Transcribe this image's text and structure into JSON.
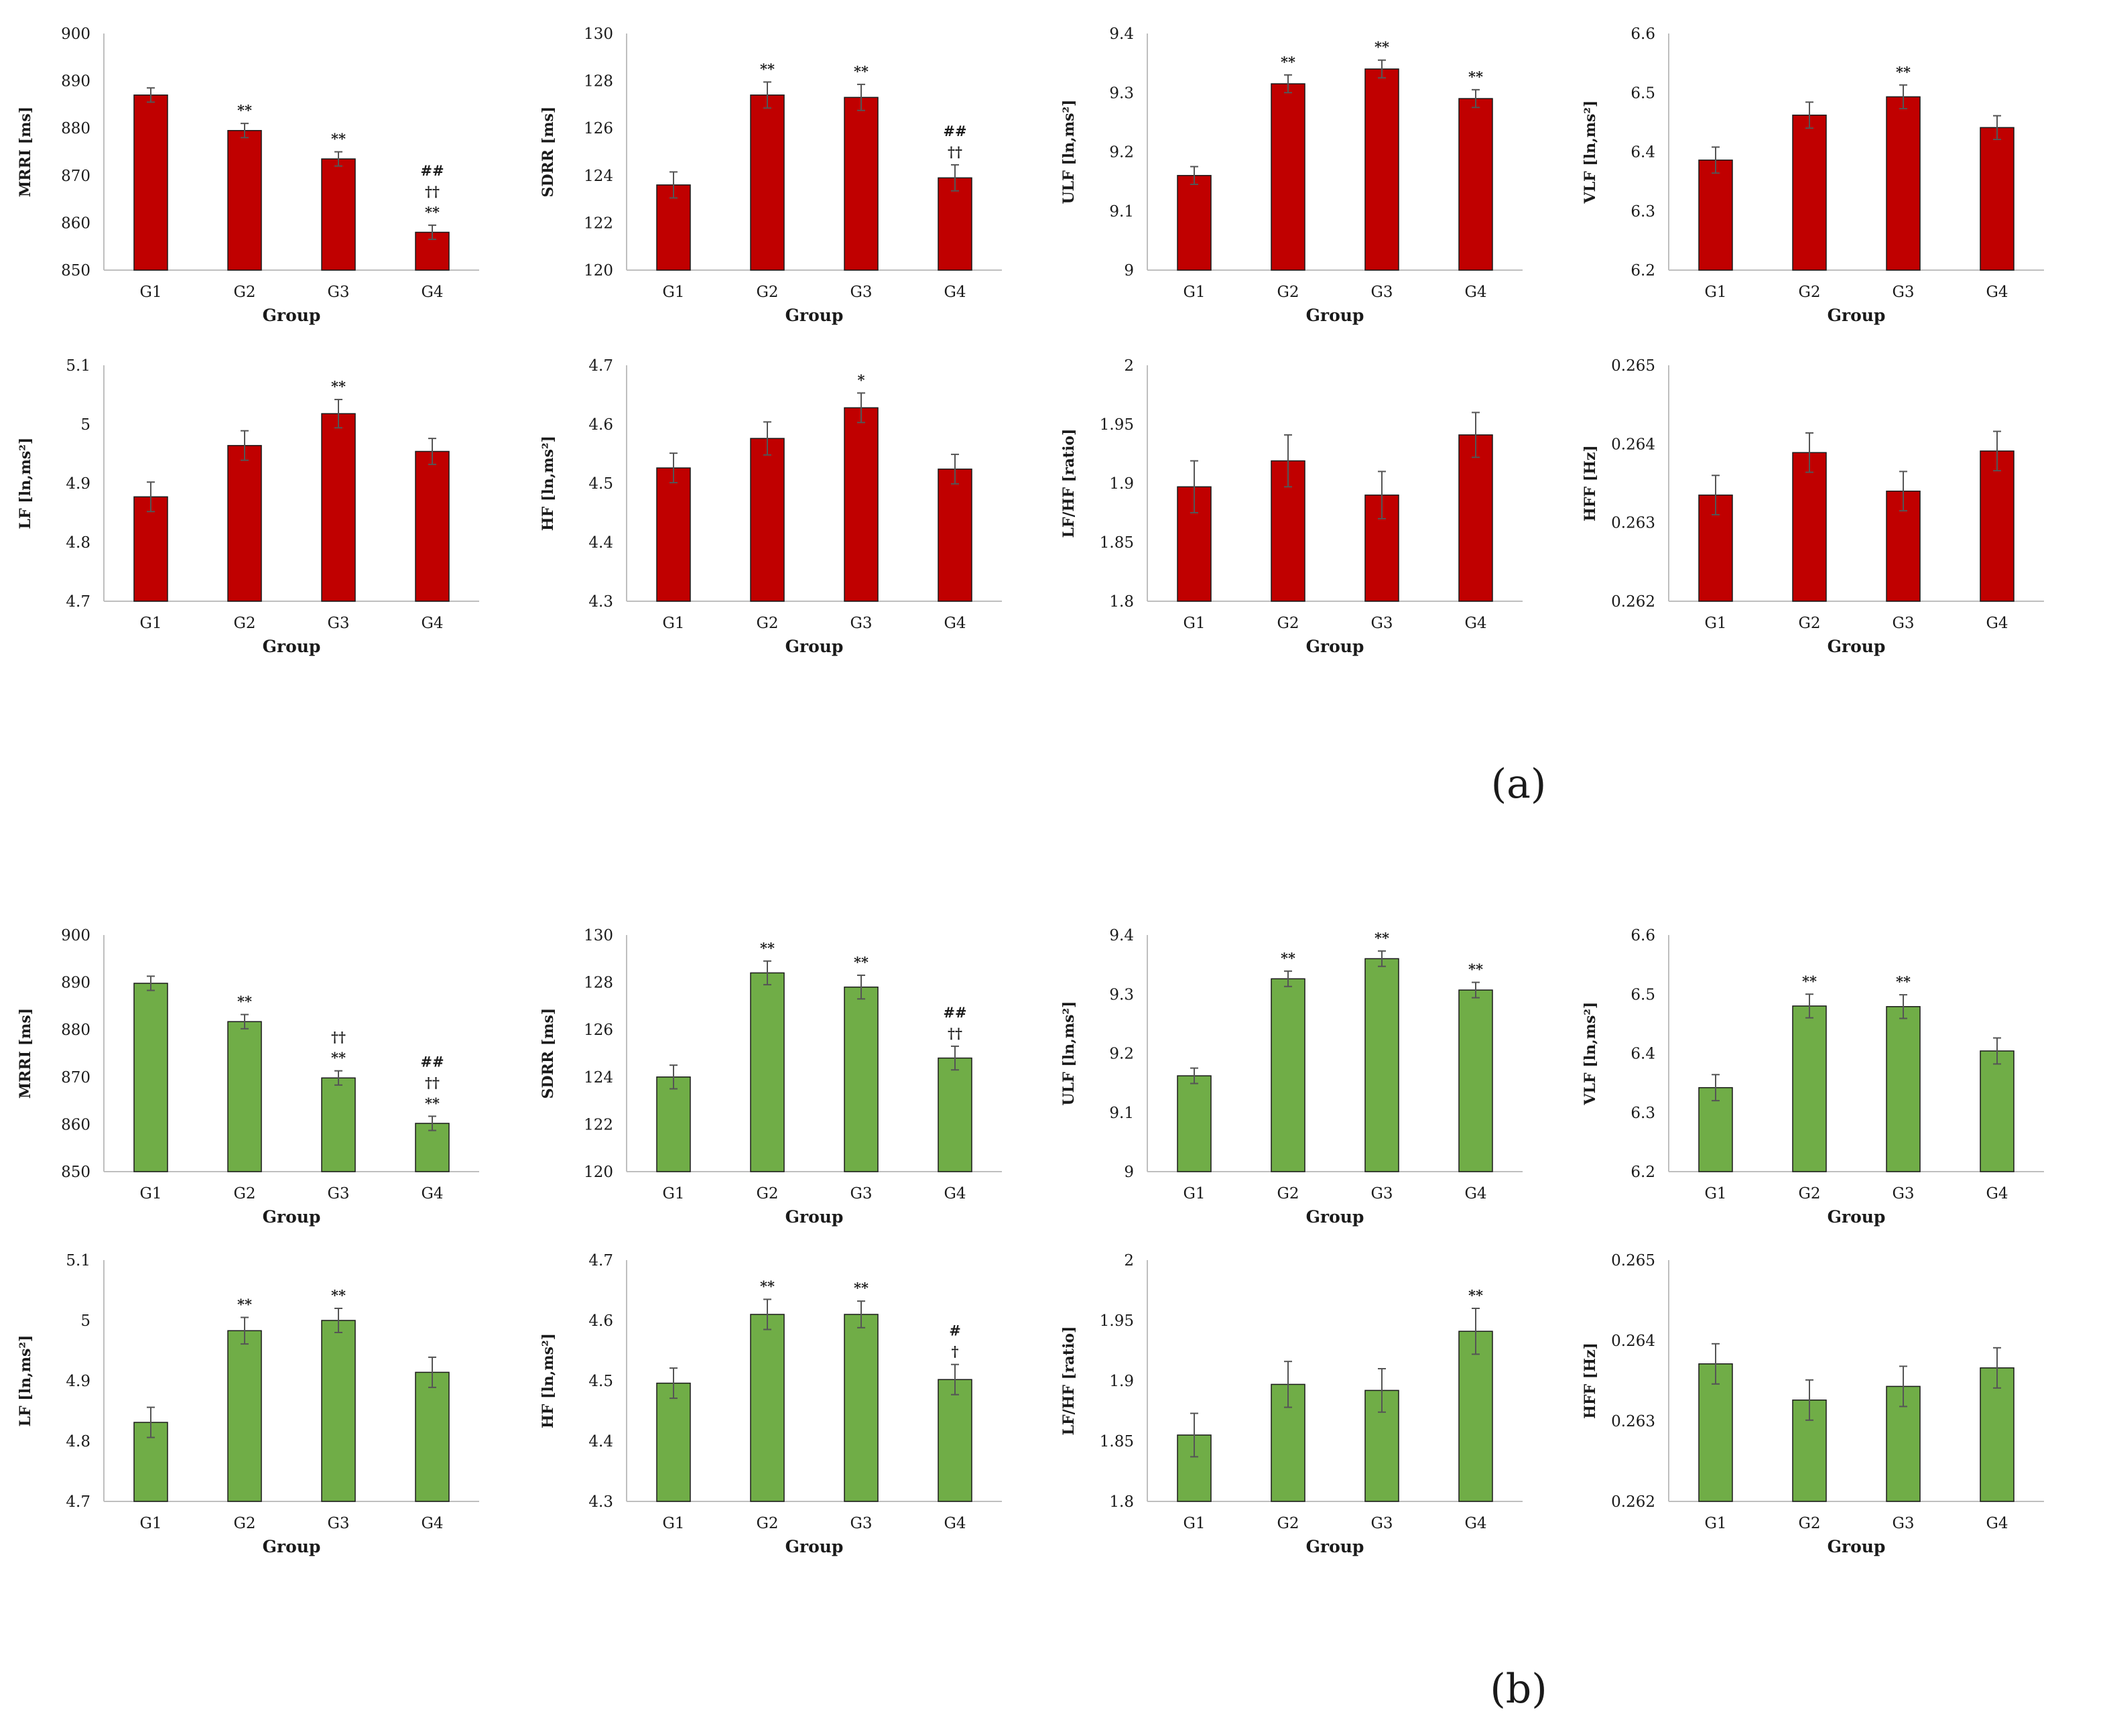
{
  "figure": {
    "panel_labels": [
      "(a)",
      "(b)"
    ]
  },
  "chart_data": [
    {
      "type": "bar",
      "figure_panel": "(a)",
      "color": "#c00000",
      "title": "",
      "xlabel": "Group",
      "ylabel": "MRRI [ms]",
      "categories": [
        "G1",
        "G2",
        "G3",
        "G4"
      ],
      "values": [
        887,
        879.5,
        873.5,
        858
      ],
      "errors": [
        1.5,
        1.5,
        1.5,
        1.5
      ],
      "ylim": [
        850,
        900
      ],
      "yticks": [
        "850",
        "860",
        "870",
        "880",
        "890",
        "900"
      ],
      "annotations": [
        "",
        "**",
        "**",
        "##\n††\n**"
      ]
    },
    {
      "type": "bar",
      "figure_panel": "(a)",
      "color": "#c00000",
      "title": "",
      "xlabel": "Group",
      "ylabel": "SDRR [ms]",
      "categories": [
        "G1",
        "G2",
        "G3",
        "G4"
      ],
      "values": [
        123.6,
        127.4,
        127.3,
        123.9
      ],
      "errors": [
        0.55,
        0.55,
        0.55,
        0.55
      ],
      "ylim": [
        120,
        130
      ],
      "yticks": [
        "120",
        "122",
        "124",
        "126",
        "128",
        "130"
      ],
      "annotations": [
        "",
        "**",
        "**",
        "##\n††"
      ]
    },
    {
      "type": "bar",
      "figure_panel": "(a)",
      "color": "#c00000",
      "title": "",
      "xlabel": "Group",
      "ylabel": "ULF [ln,ms²]",
      "categories": [
        "G1",
        "G2",
        "G3",
        "G4"
      ],
      "values": [
        9.16,
        9.315,
        9.34,
        9.29
      ],
      "errors": [
        0.015,
        0.015,
        0.015,
        0.015
      ],
      "ylim": [
        9,
        9.4
      ],
      "yticks": [
        "9",
        "9.1",
        "9.2",
        "9.3",
        "9.4"
      ],
      "annotations": [
        "",
        "**",
        "**",
        "**"
      ]
    },
    {
      "type": "bar",
      "figure_panel": "(a)",
      "color": "#c00000",
      "title": "",
      "xlabel": "Group",
      "ylabel": "VLF [ln,ms²]",
      "categories": [
        "G1",
        "G2",
        "G3",
        "G4"
      ],
      "values": [
        6.386,
        6.462,
        6.493,
        6.441
      ],
      "errors": [
        0.022,
        0.022,
        0.02,
        0.02
      ],
      "ylim": [
        6.2,
        6.6
      ],
      "yticks": [
        "6.2",
        "6.3",
        "6.4",
        "6.5",
        "6.6"
      ],
      "annotations": [
        "",
        "",
        "**",
        ""
      ]
    },
    {
      "type": "bar",
      "figure_panel": "(a)",
      "color": "#c00000",
      "title": "",
      "xlabel": "Group",
      "ylabel": "LF [ln,ms²]",
      "categories": [
        "G1",
        "G2",
        "G3",
        "G4"
      ],
      "values": [
        4.877,
        4.964,
        5.018,
        4.954
      ],
      "errors": [
        0.025,
        0.025,
        0.024,
        0.022
      ],
      "ylim": [
        4.7,
        5.1
      ],
      "yticks": [
        "4.7",
        "4.8",
        "4.9",
        "5",
        "5.1"
      ],
      "annotations": [
        "",
        "",
        "**",
        ""
      ]
    },
    {
      "type": "bar",
      "figure_panel": "(a)",
      "color": "#c00000",
      "title": "",
      "xlabel": "Group",
      "ylabel": "HF [ln,ms²]",
      "categories": [
        "G1",
        "G2",
        "G3",
        "G4"
      ],
      "values": [
        4.526,
        4.576,
        4.628,
        4.524
      ],
      "errors": [
        0.025,
        0.028,
        0.025,
        0.025
      ],
      "ylim": [
        4.3,
        4.7
      ],
      "yticks": [
        "4.3",
        "4.4",
        "4.5",
        "4.6",
        "4.7"
      ],
      "annotations": [
        "",
        "",
        "*",
        ""
      ]
    },
    {
      "type": "bar",
      "figure_panel": "(a)",
      "color": "#c00000",
      "title": "",
      "xlabel": "Group",
      "ylabel": "LF/HF [ratio]",
      "categories": [
        "G1",
        "G2",
        "G3",
        "G4"
      ],
      "values": [
        1.897,
        1.919,
        1.89,
        1.941
      ],
      "errors": [
        0.022,
        0.022,
        0.02,
        0.019
      ],
      "ylim": [
        1.8,
        2
      ],
      "yticks": [
        "1.8",
        "1.85",
        "1.9",
        "1.95",
        "2"
      ],
      "annotations": [
        "",
        "",
        "",
        ""
      ]
    },
    {
      "type": "bar",
      "figure_panel": "(a)",
      "color": "#c00000",
      "title": "",
      "xlabel": "Group",
      "ylabel": "HFF [Hz]",
      "categories": [
        "G1",
        "G2",
        "G3",
        "G4"
      ],
      "values": [
        0.26335,
        0.26389,
        0.2634,
        0.26391
      ],
      "errors": [
        0.00025,
        0.00025,
        0.00025,
        0.00025
      ],
      "ylim": [
        0.262,
        0.265
      ],
      "yticks": [
        "0.262",
        "0.263",
        "0.264",
        "0.265"
      ],
      "annotations": [
        "",
        "",
        "",
        ""
      ]
    },
    {
      "type": "bar",
      "figure_panel": "(b)",
      "color": "#70ad47",
      "title": "",
      "xlabel": "Group",
      "ylabel": "MRRI [ms]",
      "categories": [
        "G1",
        "G2",
        "G3",
        "G4"
      ],
      "values": [
        889.8,
        881.7,
        869.8,
        860.2
      ],
      "errors": [
        1.5,
        1.5,
        1.5,
        1.5
      ],
      "ylim": [
        850,
        900
      ],
      "yticks": [
        "850",
        "860",
        "870",
        "880",
        "890",
        "900"
      ],
      "annotations": [
        "",
        "**",
        "††\n**",
        "##\n††\n**"
      ]
    },
    {
      "type": "bar",
      "figure_panel": "(b)",
      "color": "#70ad47",
      "title": "",
      "xlabel": "Group",
      "ylabel": "SDRR [ms]",
      "categories": [
        "G1",
        "G2",
        "G3",
        "G4"
      ],
      "values": [
        124,
        128.4,
        127.8,
        124.8
      ],
      "errors": [
        0.5,
        0.5,
        0.5,
        0.5
      ],
      "ylim": [
        120,
        130
      ],
      "yticks": [
        "120",
        "122",
        "124",
        "126",
        "128",
        "130"
      ],
      "annotations": [
        "",
        "**",
        "**",
        "##\n††"
      ]
    },
    {
      "type": "bar",
      "figure_panel": "(b)",
      "color": "#70ad47",
      "title": "",
      "xlabel": "Group",
      "ylabel": "ULF [ln,ms²]",
      "categories": [
        "G1",
        "G2",
        "G3",
        "G4"
      ],
      "values": [
        9.162,
        9.326,
        9.36,
        9.307
      ],
      "errors": [
        0.013,
        0.013,
        0.013,
        0.013
      ],
      "ylim": [
        9,
        9.4
      ],
      "yticks": [
        "9",
        "9.1",
        "9.2",
        "9.3",
        "9.4"
      ],
      "annotations": [
        "",
        "**",
        "**",
        "**"
      ]
    },
    {
      "type": "bar",
      "figure_panel": "(b)",
      "color": "#70ad47",
      "title": "",
      "xlabel": "Group",
      "ylabel": "VLF [ln,ms²]",
      "categories": [
        "G1",
        "G2",
        "G3",
        "G4"
      ],
      "values": [
        6.342,
        6.48,
        6.479,
        6.404
      ],
      "errors": [
        0.022,
        0.02,
        0.02,
        0.022
      ],
      "ylim": [
        6.2,
        6.6
      ],
      "yticks": [
        "6.2",
        "6.3",
        "6.4",
        "6.5",
        "6.6"
      ],
      "annotations": [
        "",
        "**",
        "**",
        ""
      ]
    },
    {
      "type": "bar",
      "figure_panel": "(b)",
      "color": "#70ad47",
      "title": "",
      "xlabel": "Group",
      "ylabel": "LF [ln,ms²]",
      "categories": [
        "G1",
        "G2",
        "G3",
        "G4"
      ],
      "values": [
        4.831,
        4.983,
        5,
        4.914
      ],
      "errors": [
        0.025,
        0.022,
        0.02,
        0.025
      ],
      "ylim": [
        4.7,
        5.1
      ],
      "yticks": [
        "4.7",
        "4.8",
        "4.9",
        "5",
        "5.1"
      ],
      "annotations": [
        "",
        "**",
        "**",
        ""
      ]
    },
    {
      "type": "bar",
      "figure_panel": "(b)",
      "color": "#70ad47",
      "title": "",
      "xlabel": "Group",
      "ylabel": "HF [ln,ms²]",
      "categories": [
        "G1",
        "G2",
        "G3",
        "G4"
      ],
      "values": [
        4.496,
        4.61,
        4.61,
        4.502
      ],
      "errors": [
        0.025,
        0.025,
        0.022,
        0.025
      ],
      "ylim": [
        4.3,
        4.7
      ],
      "yticks": [
        "4.3",
        "4.4",
        "4.5",
        "4.6",
        "4.7"
      ],
      "annotations": [
        "",
        "**",
        "**",
        "#\n†"
      ]
    },
    {
      "type": "bar",
      "figure_panel": "(b)",
      "color": "#70ad47",
      "title": "",
      "xlabel": "Group",
      "ylabel": "LF/HF [ratio]",
      "categories": [
        "G1",
        "G2",
        "G3",
        "G4"
      ],
      "values": [
        1.855,
        1.897,
        1.892,
        1.941
      ],
      "errors": [
        0.018,
        0.019,
        0.018,
        0.019
      ],
      "ylim": [
        1.8,
        2
      ],
      "yticks": [
        "1.8",
        "1.85",
        "1.9",
        "1.95",
        "2"
      ],
      "annotations": [
        "",
        "",
        "",
        "**"
      ]
    },
    {
      "type": "bar",
      "figure_panel": "(b)",
      "color": "#70ad47",
      "title": "",
      "xlabel": "Group",
      "ylabel": "HFF [Hz]",
      "categories": [
        "G1",
        "G2",
        "G3",
        "G4"
      ],
      "values": [
        0.26371,
        0.26326,
        0.26343,
        0.26366
      ],
      "errors": [
        0.00025,
        0.00025,
        0.00025,
        0.00025
      ],
      "ylim": [
        0.262,
        0.265
      ],
      "yticks": [
        "0.262",
        "0.263",
        "0.264",
        "0.265"
      ],
      "annotations": [
        "",
        "",
        "",
        ""
      ]
    }
  ]
}
